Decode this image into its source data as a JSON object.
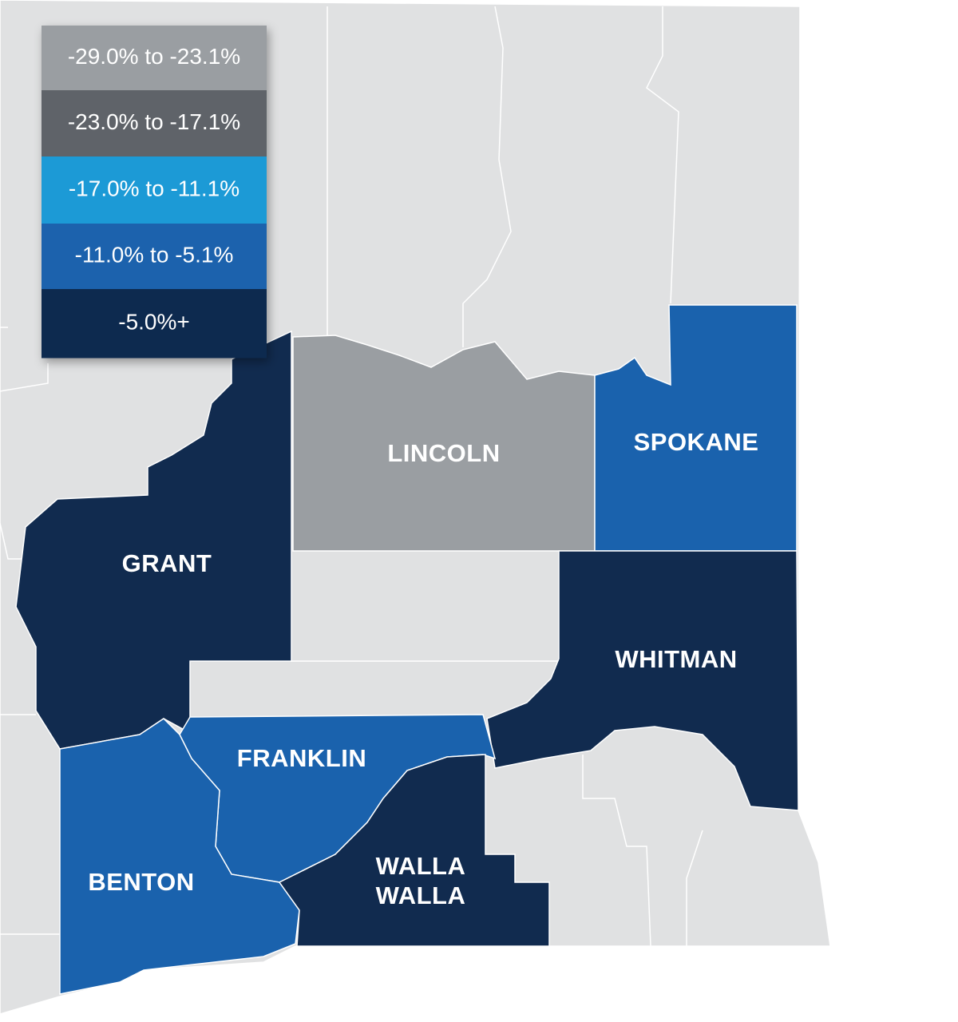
{
  "legend": [
    {
      "label": "-29.0% to -23.1%",
      "color": "#9a9ea2"
    },
    {
      "label": "-23.0% to -17.1%",
      "color": "#5f6469"
    },
    {
      "label": "-17.0% to -11.1%",
      "color": "#1a9ad6"
    },
    {
      "label": "-11.0% to -5.1%",
      "color": "#1a62ad"
    },
    {
      "label": "-5.0%+",
      "color": "#112b4f"
    }
  ],
  "counties": [
    {
      "label": "LINCOLN",
      "color": "#9a9ea2"
    },
    {
      "label": "SPOKANE",
      "color": "#1a62ad"
    },
    {
      "label": "GRANT",
      "color": "#112b4f"
    },
    {
      "label": "WHITMAN",
      "color": "#112b4f"
    },
    {
      "label": "FRANKLIN",
      "color": "#1a62ad"
    },
    {
      "label": "BENTON",
      "color": "#1a62ad"
    },
    {
      "label": "WALLA WALLA",
      "color": "#112b4f"
    }
  ]
}
